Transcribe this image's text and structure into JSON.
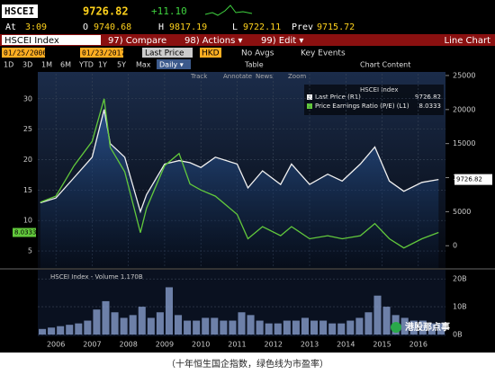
{
  "header": {
    "ticker": "HSCEI",
    "last": "9726.82",
    "change": "+11.10",
    "time_label": "At",
    "time": "3:09",
    "open_label": "O",
    "open": "9740.68",
    "high_label": "H",
    "high": "9817.19",
    "low_label": "L",
    "low": "9722.11",
    "prev_label": "Prev",
    "prev": "9715.72"
  },
  "menu": {
    "security": "HSCEI Index",
    "compare": "97) Compare",
    "actions": "98) Actions ▾",
    "edit": "99) Edit ▾",
    "view": "Line Chart"
  },
  "toolbar": {
    "start_date": "01/25/2006",
    "end_date": "01/23/2017",
    "field": "Last Price",
    "currency": "HKD",
    "avgs": "No Avgs",
    "events": "Key Events",
    "periods": [
      "1D",
      "3D",
      "1M",
      "6M",
      "YTD",
      "1Y",
      "5Y",
      "Max"
    ],
    "frequency": "Daily ▾",
    "table": "Table",
    "chart_content": "Chart Content"
  },
  "chart_tools": [
    "Track",
    "Annotate",
    "News",
    "Zoom"
  ],
  "chart_data": [
    {
      "type": "line",
      "title": "HSCEI Index",
      "x": [
        2006.07,
        2006.5,
        2007.0,
        2007.5,
        2007.83,
        2008.0,
        2008.4,
        2008.83,
        2009.0,
        2009.5,
        2009.9,
        2010.2,
        2010.5,
        2010.9,
        2011.5,
        2011.8,
        2012.2,
        2012.7,
        2013.0,
        2013.5,
        2014.0,
        2014.4,
        2014.9,
        2015.3,
        2015.7,
        2016.1,
        2016.6,
        2017.06
      ],
      "series": [
        {
          "name": "Last Price (R1)",
          "color": "#f0f0f0",
          "axis": "y2",
          "values": [
            6300,
            7000,
            10000,
            13000,
            20000,
            15000,
            13000,
            5000,
            7500,
            12000,
            12500,
            12200,
            11500,
            13000,
            12000,
            8500,
            11000,
            9000,
            12000,
            9000,
            10500,
            9500,
            12000,
            14500,
            9500,
            8000,
            9300,
            9726.82
          ]
        },
        {
          "name": "Price Earnings Ratio (P/E) (L1)",
          "color": "#62c93c",
          "values": [
            13,
            14,
            19,
            23,
            30,
            22,
            18,
            8,
            12,
            19,
            21,
            16,
            15,
            14,
            11,
            7,
            9,
            7.5,
            9,
            7,
            7.5,
            7,
            7.5,
            9.5,
            7,
            5.5,
            7,
            8.0333
          ]
        }
      ],
      "xlim": [
        2006,
        2017.25
      ],
      "xticks": [
        {
          "value": 2006.5,
          "label": "2006"
        },
        {
          "value": 2007.5,
          "label": "2007"
        },
        {
          "value": 2008.5,
          "label": "2008"
        },
        {
          "value": 2009.5,
          "label": "2009"
        },
        {
          "value": 2010.5,
          "label": "2010"
        },
        {
          "value": 2011.5,
          "label": "2011"
        },
        {
          "value": 2012.5,
          "label": "2012"
        },
        {
          "value": 2013.5,
          "label": "2013"
        },
        {
          "value": 2014.5,
          "label": "2014"
        },
        {
          "value": 2015.5,
          "label": "2015"
        },
        {
          "value": 2016.5,
          "label": "2016"
        }
      ],
      "ylim": [
        2.2,
        34.1
      ],
      "yticks": [
        5,
        10,
        15,
        20,
        25,
        30
      ],
      "y2lim": [
        -3270,
        25260
      ],
      "y2ticks": [
        0,
        5000,
        10000,
        15000,
        20000,
        25000
      ],
      "grid": true
    },
    {
      "type": "bar",
      "title": "HSCEI Index - Volume 1.170B",
      "color": "#8fa6d6",
      "x": [
        2006.125,
        2006.375,
        2006.625,
        2006.875,
        2007.125,
        2007.375,
        2007.625,
        2007.875,
        2008.125,
        2008.375,
        2008.625,
        2008.875,
        2009.125,
        2009.375,
        2009.625,
        2009.875,
        2010.125,
        2010.375,
        2010.625,
        2010.875,
        2011.125,
        2011.375,
        2011.625,
        2011.875,
        2012.125,
        2012.375,
        2012.625,
        2012.875,
        2013.125,
        2013.375,
        2013.625,
        2013.875,
        2014.125,
        2014.375,
        2014.625,
        2014.875,
        2015.125,
        2015.375,
        2015.625,
        2015.875,
        2016.125,
        2016.375,
        2016.625,
        2016.875,
        2017.125
      ],
      "values": [
        2,
        2.5,
        3,
        3.5,
        4,
        5,
        9,
        12,
        8,
        6,
        7,
        10,
        6,
        8,
        17,
        7,
        5,
        5,
        6,
        6,
        5,
        5,
        8,
        7,
        5,
        4,
        4,
        5,
        5,
        6,
        5,
        5,
        4,
        4,
        5,
        6,
        8,
        14,
        10,
        7,
        6,
        5,
        5,
        4,
        4
      ],
      "xlim": [
        2006,
        2017.25
      ],
      "ylim": [
        0,
        22
      ],
      "yticks": [
        {
          "value": 0,
          "label": "0B"
        },
        {
          "value": 10,
          "label": "10B"
        },
        {
          "value": 20,
          "label": "20B"
        }
      ]
    }
  ],
  "watermark": "港股那点事",
  "caption": "（十年恒生国企指数，绿色线为市盈率）"
}
